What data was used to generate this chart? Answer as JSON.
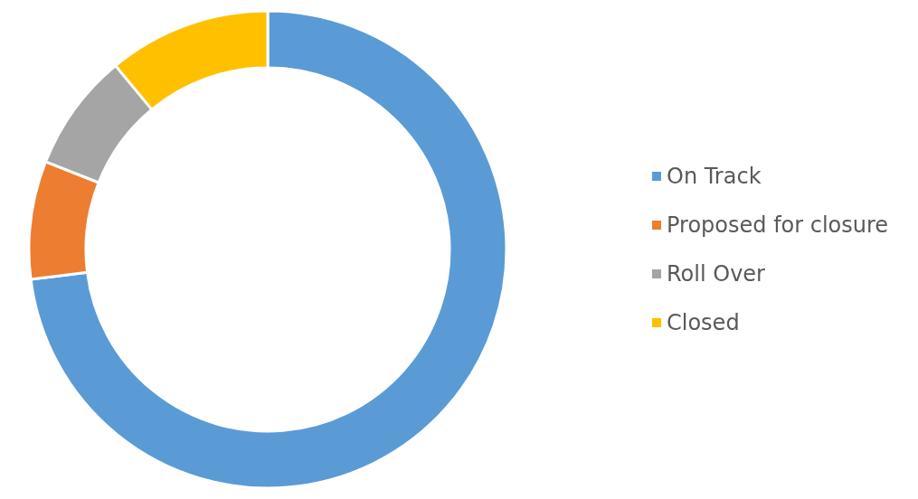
{
  "chart_data": {
    "type": "donut",
    "categories": [
      "On Track",
      "Proposed for closure",
      "Roll Over",
      "Closed"
    ],
    "values": [
      73,
      8,
      8,
      11
    ],
    "colors": [
      "#5b9bd5",
      "#ed7d31",
      "#a5a5a5",
      "#ffc000"
    ],
    "legend": "right"
  }
}
